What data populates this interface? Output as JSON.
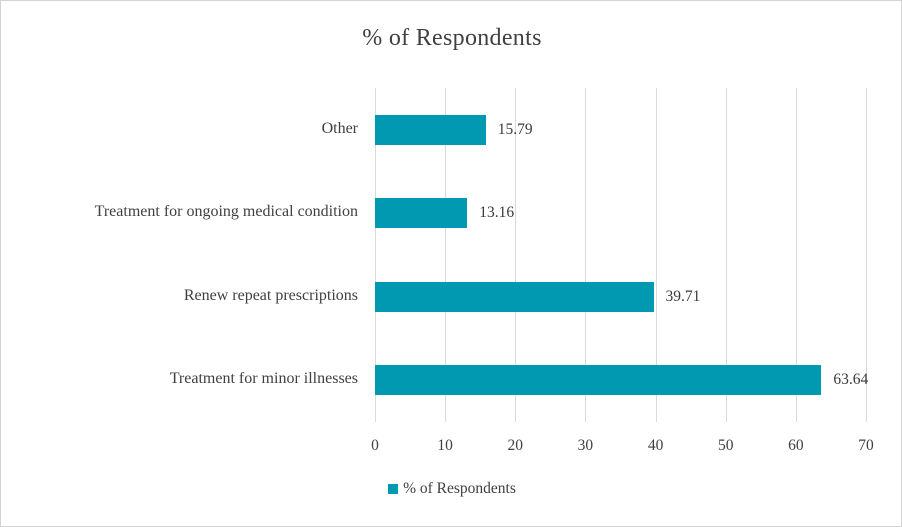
{
  "chart_data": {
    "type": "bar",
    "orientation": "horizontal",
    "title": "% of Respondents",
    "categories": [
      "Other",
      "Treatment for ongoing medical condition",
      "Renew repeat prescriptions",
      "Treatment for minor illnesses"
    ],
    "category_order": "top-to-bottom",
    "values": [
      15.79,
      13.16,
      39.71,
      63.64
    ],
    "value_labels": [
      "15.79",
      "13.16",
      "39.71",
      "63.64"
    ],
    "x_ticks": [
      0,
      10,
      20,
      30,
      40,
      50,
      60,
      70
    ],
    "x_tick_labels": [
      "0",
      "10",
      "20",
      "30",
      "40",
      "50",
      "60",
      "70"
    ],
    "xlim": [
      0,
      70
    ],
    "xlabel": "",
    "ylabel": "",
    "grid": "vertical-gridlines-on",
    "legend": [
      "% of Respondents"
    ],
    "legend_position": "bottom-center",
    "data_labels": "outside-end"
  },
  "colors": {
    "bar": "#0099b2",
    "title_text": "#404040",
    "label_text": "#404040",
    "gridline": "#d9d9d9",
    "border": "#d3d3d3",
    "background": "#ffffff"
  }
}
